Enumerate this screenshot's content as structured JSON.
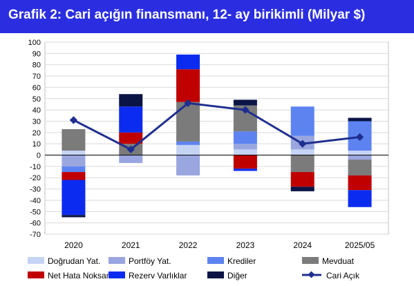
{
  "title": "Grafik 2: Cari açığın finansmanı, 12- ay birikimli (Milyar $)",
  "colors": {
    "title_bar": "#2b2ee0",
    "grid": "#d9d9d9",
    "plot_border": "#bfbfbf",
    "line": "#1f2f8f"
  },
  "chart_data": {
    "type": "bar",
    "stacked": true,
    "categories": [
      "2020",
      "2021",
      "2022",
      "2023",
      "2024",
      "2025/05"
    ],
    "ylim": [
      -70,
      100
    ],
    "yticks": [
      -70,
      -60,
      -50,
      -40,
      -30,
      -20,
      -10,
      0,
      10,
      20,
      30,
      40,
      50,
      60,
      70,
      80,
      90,
      100
    ],
    "grid": true,
    "legend_position": "bottom",
    "series": [
      {
        "name": "Doğrudan Yat.",
        "color": "#c5d3f5",
        "values": [
          4,
          0,
          9,
          5,
          5,
          4
        ]
      },
      {
        "name": "Portföy Yat.",
        "color": "#9aa6df",
        "values": [
          -10,
          -7,
          -18,
          5,
          12,
          -4
        ]
      },
      {
        "name": "Krediler",
        "color": "#5c83f0",
        "values": [
          -5,
          0,
          3,
          11,
          26,
          26
        ]
      },
      {
        "name": "Mevduat",
        "color": "#7b7b7b",
        "values": [
          19,
          10,
          35,
          23,
          -15,
          -14
        ]
      },
      {
        "name": "Net Hata Noksan",
        "color": "#c00000",
        "values": [
          -7,
          10,
          29,
          -12,
          -13,
          -13
        ]
      },
      {
        "name": "Rezerv Varlıklar",
        "color": "#0b2cf0",
        "values": [
          -31,
          23,
          13,
          -2,
          0,
          -15
        ]
      },
      {
        "name": "Diğer",
        "color": "#0a1445",
        "values": [
          -2,
          11,
          0,
          5,
          -4,
          3
        ]
      }
    ],
    "line": {
      "name": "Cari Açık",
      "values": [
        31,
        5,
        46,
        40,
        10,
        16
      ]
    }
  }
}
